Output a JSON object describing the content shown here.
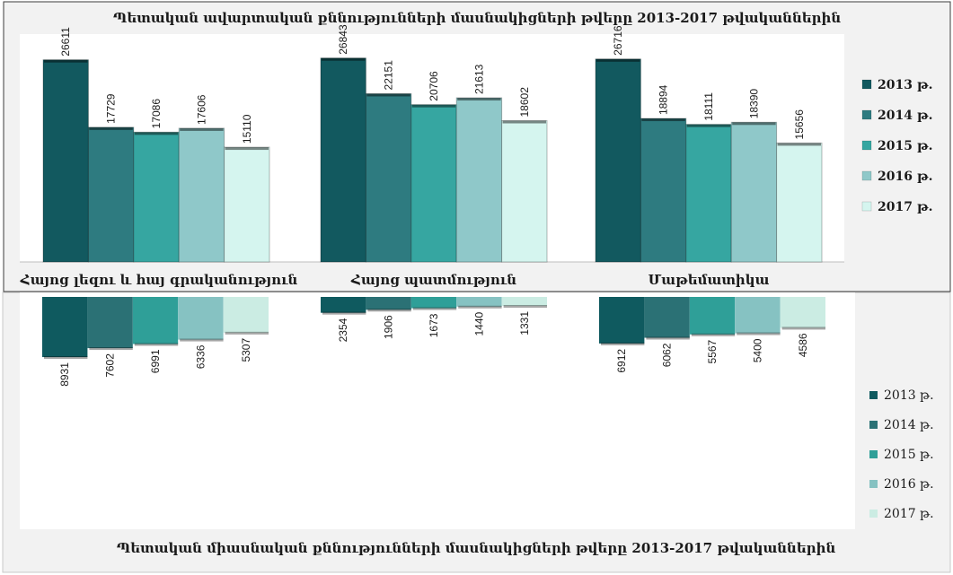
{
  "chart_data": [
    {
      "type": "bar",
      "title": "Պետական ավարտական քննությունների մասնակիցների թվերը 2013-2017 թվականներին",
      "categories": [
        "Հայոց լեզու և հայ գրականություն",
        "Հայոց պատմություն",
        "Մաթեմատիկա"
      ],
      "series": [
        {
          "name": "2013 թ.",
          "values": [
            26611,
            26843,
            26716
          ]
        },
        {
          "name": "2014 թ.",
          "values": [
            17729,
            22151,
            18894
          ]
        },
        {
          "name": "2015 թ.",
          "values": [
            17086,
            20706,
            18111
          ]
        },
        {
          "name": "2016 թ.",
          "values": [
            17606,
            21613,
            18390
          ]
        },
        {
          "name": "2017 թ.",
          "values": [
            15110,
            18602,
            15656
          ]
        }
      ],
      "ylim": [
        0,
        30000
      ],
      "legend": "right",
      "grid": false,
      "colors": [
        "#12595f",
        "#2e7b80",
        "#36a6a1",
        "#8fc8c9",
        "#d5f5ef"
      ]
    },
    {
      "type": "bar",
      "title": "Պետական միասնական քննությունների մասնակիցների թվերը 2013-2017 թվականներին",
      "categories": [
        "Հայոց լեզու և հայ գրականություն",
        "Հայոց պատմություն",
        "Մաթեմատիկա"
      ],
      "series": [
        {
          "name": "2013 թ.",
          "values": [
            8931,
            2354,
            6912
          ]
        },
        {
          "name": "2014 թ.",
          "values": [
            7602,
            1906,
            6062
          ]
        },
        {
          "name": "2015 թ.",
          "values": [
            6991,
            1673,
            5567
          ]
        },
        {
          "name": "2016 թ.",
          "values": [
            6336,
            1440,
            5400
          ]
        },
        {
          "name": "2017 թ.",
          "values": [
            5307,
            1331,
            4586
          ]
        }
      ],
      "ylim": [
        0,
        30000
      ],
      "orientation": "downward",
      "legend": "right",
      "grid": false,
      "colors": [
        "#0f5a5f",
        "#2b7175",
        "#2f9f98",
        "#86c2c2",
        "#cbece3"
      ]
    }
  ]
}
